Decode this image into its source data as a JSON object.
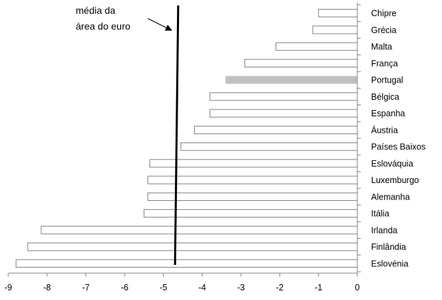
{
  "chart_data": {
    "type": "bar",
    "orientation": "horizontal",
    "title": "",
    "xlabel": "",
    "ylabel": "",
    "categories": [
      "Chipre",
      "Grécia",
      "Malta",
      "França",
      "Portugal",
      "Bélgica",
      "Espanha",
      "Áustria",
      "Países Baixos",
      "Eslováquia",
      "Luxemburgo",
      "Alemanha",
      "Itália",
      "Irlanda",
      "Finlândia",
      "Eslovénia"
    ],
    "values": [
      -1.0,
      -1.15,
      -2.1,
      -2.9,
      -3.4,
      -3.8,
      -3.8,
      -4.2,
      -4.55,
      -5.35,
      -5.4,
      -5.4,
      -5.5,
      -8.15,
      -8.5,
      -8.8
    ],
    "highlight": "Portugal",
    "colors": {
      "bar_fill": "#ffffff",
      "bar_stroke": "#808080",
      "highlight_fill": "#c0c0c0",
      "reference_line": "#000000"
    },
    "xlim": [
      -9,
      0
    ],
    "xticks": [
      -9,
      -8,
      -7,
      -6,
      -5,
      -4,
      -3,
      -2,
      -1,
      0
    ],
    "grid": false,
    "legend": "none",
    "reference_line": {
      "value": -4.7,
      "label_lines": [
        "média da",
        "área do euro"
      ]
    }
  }
}
